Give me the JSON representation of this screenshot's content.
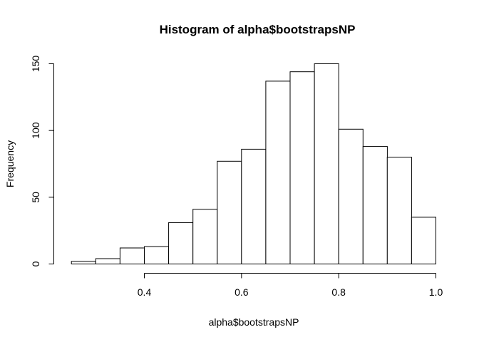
{
  "chart_data": {
    "type": "bar",
    "title": "Histogram of alpha$bootstrapsNP",
    "xlabel": "alpha$bootstrapsNP",
    "ylabel": "Frequency",
    "bins": [
      {
        "from": 0.25,
        "to": 0.3,
        "count": 2
      },
      {
        "from": 0.3,
        "to": 0.35,
        "count": 4
      },
      {
        "from": 0.35,
        "to": 0.4,
        "count": 12
      },
      {
        "from": 0.4,
        "to": 0.45,
        "count": 13
      },
      {
        "from": 0.45,
        "to": 0.5,
        "count": 31
      },
      {
        "from": 0.5,
        "to": 0.55,
        "count": 41
      },
      {
        "from": 0.55,
        "to": 0.6,
        "count": 77
      },
      {
        "from": 0.6,
        "to": 0.65,
        "count": 86
      },
      {
        "from": 0.65,
        "to": 0.7,
        "count": 137
      },
      {
        "from": 0.7,
        "to": 0.75,
        "count": 144
      },
      {
        "from": 0.75,
        "to": 0.8,
        "count": 150
      },
      {
        "from": 0.8,
        "to": 0.85,
        "count": 101
      },
      {
        "from": 0.85,
        "to": 0.9,
        "count": 88
      },
      {
        "from": 0.9,
        "to": 0.95,
        "count": 80
      },
      {
        "from": 0.95,
        "to": 1.0,
        "count": 35
      }
    ],
    "xticks": [
      0.4,
      0.6,
      0.8,
      1.0
    ],
    "xtick_labels": [
      "0.4",
      "0.6",
      "0.8",
      "1.0"
    ],
    "yticks": [
      0,
      50,
      100,
      150
    ],
    "ytick_labels": [
      "0",
      "50",
      "100",
      "150"
    ],
    "grid": false,
    "legend": "none",
    "colors": {
      "bar_fill": "#ffffff",
      "bar_stroke": "#000000",
      "axis": "#000000"
    }
  }
}
